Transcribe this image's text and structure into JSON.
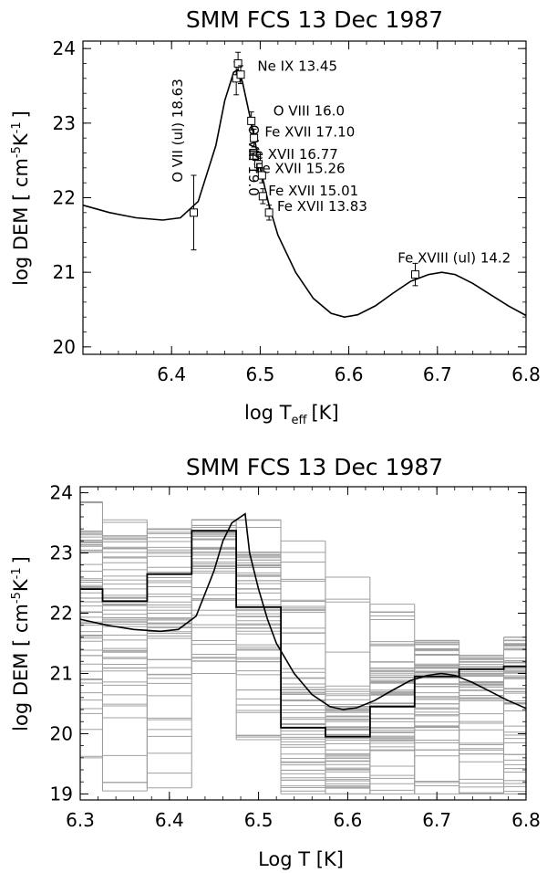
{
  "chart_data": [
    {
      "type": "line",
      "title": "SMM FCS 13 Dec 1987",
      "xlabel": "log T",
      "xlabel_sub": "eff",
      "xlabel_unit": "[K]",
      "ylabel": "log DEM [ cm",
      "ylabel_exp1": "-5",
      "ylabel_mid": "K",
      "ylabel_exp2": "-1",
      "ylabel_end": "]",
      "xlim": [
        6.3,
        6.8
      ],
      "ylim": [
        19.9,
        24.1
      ],
      "xticks": [
        "6.4",
        "6.5",
        "6.6",
        "6.7",
        "6.8"
      ],
      "yticks": [
        "20",
        "21",
        "22",
        "23",
        "24"
      ],
      "dem_curve": {
        "x": [
          6.3,
          6.33,
          6.36,
          6.39,
          6.41,
          6.43,
          6.45,
          6.46,
          6.47,
          6.475,
          6.48,
          6.49,
          6.5,
          6.51,
          6.52,
          6.54,
          6.56,
          6.58,
          6.595,
          6.61,
          6.63,
          6.65,
          6.67,
          6.69,
          6.705,
          6.72,
          6.74,
          6.76,
          6.78,
          6.8
        ],
        "y": [
          21.9,
          21.8,
          21.73,
          21.7,
          21.73,
          21.95,
          22.7,
          23.3,
          23.68,
          23.72,
          23.55,
          23.0,
          22.4,
          21.9,
          21.5,
          21.0,
          20.65,
          20.45,
          20.4,
          20.43,
          20.55,
          20.72,
          20.88,
          20.97,
          21.0,
          20.97,
          20.85,
          20.7,
          20.55,
          20.42
        ]
      },
      "points": [
        {
          "x": 6.425,
          "y": 21.8,
          "err": 0.5
        },
        {
          "x": 6.473,
          "y": 23.6,
          "err": 0.22
        },
        {
          "x": 6.475,
          "y": 23.8,
          "err": 0.15
        },
        {
          "x": 6.478,
          "y": 23.65,
          "err": 0.12
        },
        {
          "x": 6.49,
          "y": 23.03,
          "err": 0.12
        },
        {
          "x": 6.493,
          "y": 22.8,
          "err": 0.12
        },
        {
          "x": 6.496,
          "y": 22.55,
          "err": 0.1
        },
        {
          "x": 6.498,
          "y": 22.45,
          "err": 0.1
        },
        {
          "x": 6.502,
          "y": 22.3,
          "err": 0.1
        },
        {
          "x": 6.503,
          "y": 22.02,
          "err": 0.1
        },
        {
          "x": 6.51,
          "y": 21.8,
          "err": 0.1
        },
        {
          "x": 6.675,
          "y": 20.97,
          "err": 0.15
        }
      ],
      "annotations": [
        {
          "text": "Ne IX  13.45",
          "x": 6.542,
          "y": 23.7,
          "rotate": 0
        },
        {
          "text": "O VIII   16.0",
          "x": 6.555,
          "y": 23.1,
          "rotate": 0
        },
        {
          "text": "Fe XVII  17.10",
          "x": 6.556,
          "y": 22.82,
          "rotate": 0
        },
        {
          "text": "Fe XVII   16.77",
          "x": 6.537,
          "y": 22.52,
          "rotate": 0
        },
        {
          "text": "Fe XVII    15.26",
          "x": 6.545,
          "y": 22.33,
          "rotate": 0
        },
        {
          "text": "Fe XVII    15.01",
          "x": 6.56,
          "y": 22.03,
          "rotate": 0
        },
        {
          "text": "Fe XVII    13.83",
          "x": 6.57,
          "y": 21.82,
          "rotate": 0
        },
        {
          "text": "Fe XVIII (ul)  14.2",
          "x": 6.719,
          "y": 21.13,
          "rotate": 0
        },
        {
          "text": "O VII (ul) 18.63",
          "x": 6.412,
          "y": 22.9,
          "rotate": -90
        },
        {
          "text": "O VIII 19.0",
          "x": 6.487,
          "y": 22.5,
          "rotate": 90
        }
      ]
    },
    {
      "type": "line",
      "title": "SMM FCS 13 Dec 1987",
      "xlabel": "Log T [K]",
      "ylabel": "log DEM [ cm",
      "ylabel_exp1": "-5",
      "ylabel_mid": "K",
      "ylabel_exp2": "-1",
      "ylabel_end": "]",
      "xlim": [
        6.3,
        6.8
      ],
      "ylim": [
        18.9,
        24.1
      ],
      "xticks": [
        "6.3",
        "6.4",
        "6.5",
        "6.6",
        "6.7",
        "6.8"
      ],
      "yticks": [
        "19",
        "20",
        "21",
        "22",
        "23",
        "24"
      ],
      "bin_edges": [
        6.3,
        6.325,
        6.375,
        6.425,
        6.475,
        6.525,
        6.575,
        6.625,
        6.675,
        6.725,
        6.775,
        6.8
      ],
      "best_fit_step": [
        22.4,
        22.2,
        22.65,
        23.37,
        22.1,
        20.1,
        19.95,
        20.45,
        20.95,
        21.07,
        21.12
      ],
      "mc_range_min": [
        19.6,
        19.05,
        19.1,
        21.0,
        19.9,
        19.0,
        19.0,
        19.0,
        19.0,
        19.0,
        19.0
      ],
      "mc_range_max": [
        23.85,
        23.55,
        23.4,
        23.55,
        23.55,
        23.2,
        22.6,
        22.15,
        21.55,
        21.3,
        21.6
      ],
      "dem_curve": {
        "x": [
          6.3,
          6.33,
          6.36,
          6.39,
          6.41,
          6.43,
          6.45,
          6.46,
          6.47,
          6.475,
          6.48,
          6.485,
          6.49,
          6.5,
          6.51,
          6.52,
          6.54,
          6.56,
          6.58,
          6.595,
          6.61,
          6.63,
          6.65,
          6.67,
          6.69,
          6.705,
          6.72,
          6.74,
          6.76,
          6.78,
          6.8
        ],
        "y": [
          21.9,
          21.8,
          21.73,
          21.7,
          21.73,
          21.95,
          22.7,
          23.2,
          23.5,
          23.55,
          23.6,
          23.65,
          23.0,
          22.4,
          21.9,
          21.5,
          21.0,
          20.65,
          20.45,
          20.4,
          20.43,
          20.55,
          20.72,
          20.88,
          20.97,
          21.0,
          20.97,
          20.85,
          20.7,
          20.55,
          20.42
        ]
      }
    }
  ]
}
